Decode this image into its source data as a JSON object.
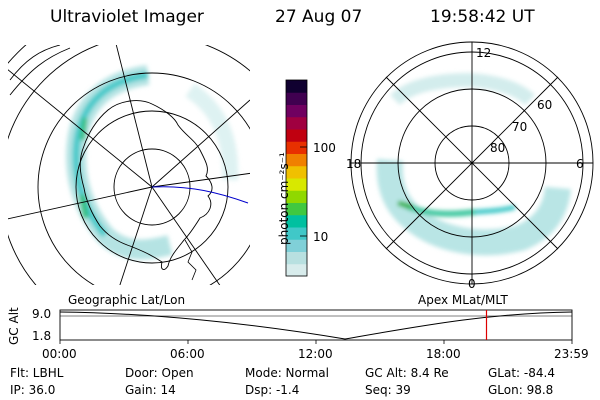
{
  "header": {
    "instrument": "Ultraviolet Imager",
    "date": "27 Aug 07",
    "time": "19:58:42 UT"
  },
  "left_panel": {
    "label": "Geographic Lat/Lon"
  },
  "right_panel": {
    "label": "Apex MLat/MLT",
    "mlt_labels": [
      "12",
      "18",
      "6",
      "0"
    ],
    "lat_labels": [
      "60",
      "70",
      "80"
    ]
  },
  "colorbar": {
    "title": "photon cm⁻²s⁻¹",
    "ticks": [
      "100",
      "10"
    ],
    "colors": [
      "#d8ecec",
      "#b8e0e0",
      "#80d0d8",
      "#40c8c8",
      "#00c0a0",
      "#40c840",
      "#90d800",
      "#d8e800",
      "#f0c000",
      "#f08000",
      "#e83000",
      "#c00010",
      "#a00040",
      "#700060",
      "#400050",
      "#100030"
    ]
  },
  "altitude_plot": {
    "ylabel": "GC Alt",
    "y_ticks": [
      "9.0",
      "1.8"
    ],
    "x_ticks": [
      "00:00",
      "06:00",
      "12:00",
      "18:00",
      "23:59"
    ],
    "marker_hour": 19.98,
    "marker_color": "#dd0000"
  },
  "footer": {
    "flt": "Flt: LBHL",
    "door": "Door: Open",
    "mode": "Mode: Normal",
    "gcalt": "GC Alt: 8.4 Re",
    "glat": "GLat: -84.4",
    "ip": "IP: 36.0",
    "gain": "Gain: 14",
    "dsp": "Dsp:    -1.4",
    "seq": "Seq: 39",
    "glon": "GLon:  98.8"
  }
}
